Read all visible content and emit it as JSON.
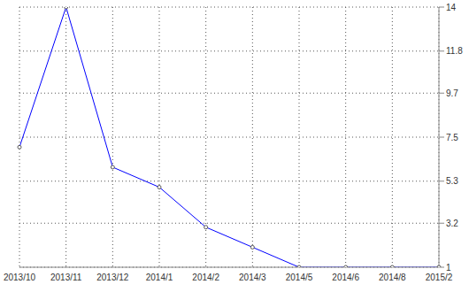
{
  "chart_data": {
    "type": "line",
    "categories": [
      "2013/10",
      "2013/11",
      "2013/12",
      "2014/1",
      "2014/2",
      "2014/3",
      "2014/5",
      "2014/6",
      "2014/8",
      "2015/2"
    ],
    "values": [
      7,
      14,
      6,
      5,
      3,
      2,
      1,
      1,
      1,
      1
    ],
    "color": "#0000ff",
    "ylim": [
      1,
      14
    ],
    "yticks": [
      1,
      3.2,
      5.3,
      7.5,
      9.7,
      11.8,
      14
    ],
    "grid": true,
    "marker": "circle"
  }
}
